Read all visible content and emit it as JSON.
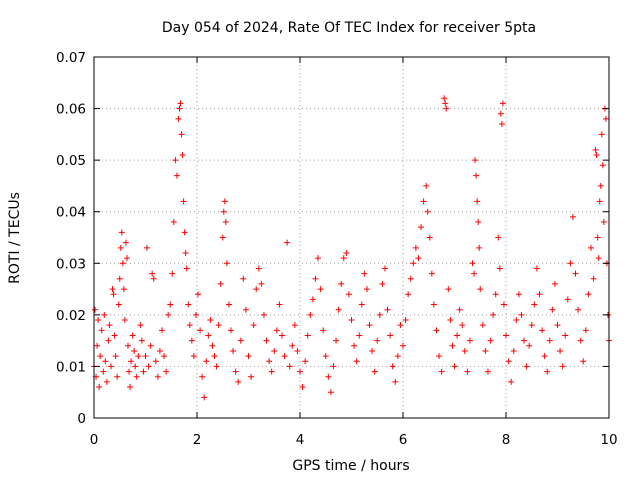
{
  "chart_data": {
    "type": "scatter",
    "title": "Day 054 of 2024, Rate Of TEC Index for receiver 5pta",
    "xlabel": "GPS time / hours",
    "ylabel": "ROTI / TECUs",
    "xlim": [
      0,
      10
    ],
    "ylim": [
      0,
      0.07
    ],
    "xticks": [
      0,
      2,
      4,
      6,
      8,
      10
    ],
    "yticks": [
      0,
      0.01,
      0.02,
      0.03,
      0.04,
      0.05,
      0.06,
      0.07
    ],
    "xtick_labels": [
      "0",
      "2",
      "4",
      "6",
      "8",
      "10"
    ],
    "ytick_labels": [
      "0",
      "0.01",
      "0.02",
      "0.03",
      "0.04",
      "0.05",
      "0.06",
      "0.07"
    ],
    "grid": true,
    "marker": "+",
    "series_color": "#ff0000",
    "series": [
      {
        "name": "ROTI",
        "points": [
          [
            0.0,
            0.01
          ],
          [
            0.02,
            0.021
          ],
          [
            0.04,
            0.008
          ],
          [
            0.06,
            0.014
          ],
          [
            0.08,
            0.019
          ],
          [
            0.1,
            0.006
          ],
          [
            0.12,
            0.012
          ],
          [
            0.15,
            0.017
          ],
          [
            0.18,
            0.009
          ],
          [
            0.2,
            0.02
          ],
          [
            0.22,
            0.011
          ],
          [
            0.25,
            0.007
          ],
          [
            0.28,
            0.015
          ],
          [
            0.3,
            0.018
          ],
          [
            0.33,
            0.01
          ],
          [
            0.36,
            0.025
          ],
          [
            0.38,
            0.024
          ],
          [
            0.4,
            0.016
          ],
          [
            0.42,
            0.012
          ],
          [
            0.45,
            0.008
          ],
          [
            0.48,
            0.022
          ],
          [
            0.5,
            0.027
          ],
          [
            0.52,
            0.033
          ],
          [
            0.54,
            0.036
          ],
          [
            0.56,
            0.03
          ],
          [
            0.58,
            0.025
          ],
          [
            0.6,
            0.019
          ],
          [
            0.62,
            0.034
          ],
          [
            0.64,
            0.031
          ],
          [
            0.66,
            0.014
          ],
          [
            0.68,
            0.009
          ],
          [
            0.7,
            0.006
          ],
          [
            0.72,
            0.011
          ],
          [
            0.75,
            0.016
          ],
          [
            0.78,
            0.013
          ],
          [
            0.8,
            0.01
          ],
          [
            0.83,
            0.008
          ],
          [
            0.86,
            0.012
          ],
          [
            0.9,
            0.018
          ],
          [
            0.93,
            0.015
          ],
          [
            0.96,
            0.009
          ],
          [
            1.0,
            0.012
          ],
          [
            1.03,
            0.033
          ],
          [
            1.06,
            0.01
          ],
          [
            1.1,
            0.014
          ],
          [
            1.13,
            0.028
          ],
          [
            1.16,
            0.027
          ],
          [
            1.2,
            0.011
          ],
          [
            1.24,
            0.008
          ],
          [
            1.28,
            0.013
          ],
          [
            1.32,
            0.017
          ],
          [
            1.36,
            0.012
          ],
          [
            1.4,
            0.009
          ],
          [
            1.44,
            0.02
          ],
          [
            1.48,
            0.022
          ],
          [
            1.52,
            0.028
          ],
          [
            1.55,
            0.038
          ],
          [
            1.58,
            0.05
          ],
          [
            1.61,
            0.047
          ],
          [
            1.64,
            0.058
          ],
          [
            1.66,
            0.06
          ],
          [
            1.68,
            0.061
          ],
          [
            1.7,
            0.055
          ],
          [
            1.72,
            0.051
          ],
          [
            1.74,
            0.042
          ],
          [
            1.76,
            0.036
          ],
          [
            1.78,
            0.032
          ],
          [
            1.8,
            0.029
          ],
          [
            1.83,
            0.022
          ],
          [
            1.86,
            0.018
          ],
          [
            1.9,
            0.015
          ],
          [
            1.94,
            0.012
          ],
          [
            1.98,
            0.02
          ],
          [
            2.02,
            0.024
          ],
          [
            2.06,
            0.017
          ],
          [
            2.1,
            0.008
          ],
          [
            2.14,
            0.004
          ],
          [
            2.18,
            0.011
          ],
          [
            2.22,
            0.016
          ],
          [
            2.26,
            0.019
          ],
          [
            2.3,
            0.014
          ],
          [
            2.34,
            0.012
          ],
          [
            2.38,
            0.01
          ],
          [
            2.42,
            0.018
          ],
          [
            2.46,
            0.026
          ],
          [
            2.5,
            0.035
          ],
          [
            2.52,
            0.04
          ],
          [
            2.54,
            0.042
          ],
          [
            2.56,
            0.038
          ],
          [
            2.58,
            0.03
          ],
          [
            2.62,
            0.022
          ],
          [
            2.66,
            0.017
          ],
          [
            2.7,
            0.013
          ],
          [
            2.75,
            0.009
          ],
          [
            2.8,
            0.007
          ],
          [
            2.85,
            0.015
          ],
          [
            2.9,
            0.027
          ],
          [
            2.95,
            0.021
          ],
          [
            3.0,
            0.012
          ],
          [
            3.05,
            0.008
          ],
          [
            3.1,
            0.018
          ],
          [
            3.15,
            0.025
          ],
          [
            3.2,
            0.029
          ],
          [
            3.25,
            0.026
          ],
          [
            3.3,
            0.02
          ],
          [
            3.35,
            0.015
          ],
          [
            3.4,
            0.011
          ],
          [
            3.45,
            0.009
          ],
          [
            3.5,
            0.013
          ],
          [
            3.55,
            0.017
          ],
          [
            3.6,
            0.022
          ],
          [
            3.65,
            0.016
          ],
          [
            3.7,
            0.012
          ],
          [
            3.75,
            0.034
          ],
          [
            3.8,
            0.01
          ],
          [
            3.85,
            0.014
          ],
          [
            3.9,
            0.018
          ],
          [
            3.95,
            0.013
          ],
          [
            4.0,
            0.009
          ],
          [
            4.05,
            0.006
          ],
          [
            4.1,
            0.011
          ],
          [
            4.15,
            0.016
          ],
          [
            4.2,
            0.02
          ],
          [
            4.25,
            0.023
          ],
          [
            4.3,
            0.027
          ],
          [
            4.35,
            0.031
          ],
          [
            4.4,
            0.025
          ],
          [
            4.45,
            0.017
          ],
          [
            4.5,
            0.012
          ],
          [
            4.55,
            0.008
          ],
          [
            4.6,
            0.005
          ],
          [
            4.65,
            0.01
          ],
          [
            4.7,
            0.015
          ],
          [
            4.75,
            0.021
          ],
          [
            4.8,
            0.026
          ],
          [
            4.85,
            0.031
          ],
          [
            4.9,
            0.032
          ],
          [
            4.95,
            0.024
          ],
          [
            5.0,
            0.019
          ],
          [
            5.05,
            0.014
          ],
          [
            5.1,
            0.011
          ],
          [
            5.15,
            0.016
          ],
          [
            5.2,
            0.022
          ],
          [
            5.25,
            0.028
          ],
          [
            5.3,
            0.025
          ],
          [
            5.35,
            0.018
          ],
          [
            5.4,
            0.013
          ],
          [
            5.45,
            0.009
          ],
          [
            5.5,
            0.015
          ],
          [
            5.55,
            0.02
          ],
          [
            5.6,
            0.026
          ],
          [
            5.65,
            0.029
          ],
          [
            5.7,
            0.021
          ],
          [
            5.75,
            0.016
          ],
          [
            5.8,
            0.01
          ],
          [
            5.85,
            0.007
          ],
          [
            5.9,
            0.012
          ],
          [
            5.95,
            0.018
          ],
          [
            6.0,
            0.014
          ],
          [
            6.05,
            0.019
          ],
          [
            6.1,
            0.024
          ],
          [
            6.15,
            0.027
          ],
          [
            6.2,
            0.03
          ],
          [
            6.25,
            0.033
          ],
          [
            6.3,
            0.031
          ],
          [
            6.35,
            0.037
          ],
          [
            6.4,
            0.042
          ],
          [
            6.45,
            0.045
          ],
          [
            6.48,
            0.04
          ],
          [
            6.52,
            0.035
          ],
          [
            6.56,
            0.028
          ],
          [
            6.6,
            0.022
          ],
          [
            6.65,
            0.017
          ],
          [
            6.7,
            0.012
          ],
          [
            6.75,
            0.009
          ],
          [
            6.8,
            0.062
          ],
          [
            6.82,
            0.061
          ],
          [
            6.84,
            0.06
          ],
          [
            6.88,
            0.025
          ],
          [
            6.92,
            0.019
          ],
          [
            6.96,
            0.014
          ],
          [
            7.0,
            0.01
          ],
          [
            7.05,
            0.016
          ],
          [
            7.1,
            0.021
          ],
          [
            7.15,
            0.018
          ],
          [
            7.2,
            0.013
          ],
          [
            7.25,
            0.009
          ],
          [
            7.3,
            0.015
          ],
          [
            7.35,
            0.03
          ],
          [
            7.38,
            0.028
          ],
          [
            7.4,
            0.05
          ],
          [
            7.42,
            0.047
          ],
          [
            7.44,
            0.042
          ],
          [
            7.46,
            0.038
          ],
          [
            7.48,
            0.033
          ],
          [
            7.5,
            0.025
          ],
          [
            7.55,
            0.018
          ],
          [
            7.6,
            0.013
          ],
          [
            7.65,
            0.009
          ],
          [
            7.7,
            0.015
          ],
          [
            7.75,
            0.02
          ],
          [
            7.8,
            0.024
          ],
          [
            7.85,
            0.035
          ],
          [
            7.88,
            0.029
          ],
          [
            7.9,
            0.059
          ],
          [
            7.92,
            0.057
          ],
          [
            7.94,
            0.061
          ],
          [
            7.96,
            0.022
          ],
          [
            8.0,
            0.016
          ],
          [
            8.05,
            0.011
          ],
          [
            8.1,
            0.007
          ],
          [
            8.15,
            0.013
          ],
          [
            8.2,
            0.019
          ],
          [
            8.25,
            0.024
          ],
          [
            8.3,
            0.02
          ],
          [
            8.35,
            0.015
          ],
          [
            8.4,
            0.01
          ],
          [
            8.45,
            0.014
          ],
          [
            8.5,
            0.018
          ],
          [
            8.55,
            0.022
          ],
          [
            8.6,
            0.029
          ],
          [
            8.65,
            0.024
          ],
          [
            8.7,
            0.017
          ],
          [
            8.75,
            0.012
          ],
          [
            8.8,
            0.009
          ],
          [
            8.85,
            0.015
          ],
          [
            8.9,
            0.021
          ],
          [
            8.95,
            0.026
          ],
          [
            9.0,
            0.018
          ],
          [
            9.05,
            0.013
          ],
          [
            9.1,
            0.01
          ],
          [
            9.15,
            0.016
          ],
          [
            9.2,
            0.023
          ],
          [
            9.25,
            0.03
          ],
          [
            9.3,
            0.039
          ],
          [
            9.35,
            0.028
          ],
          [
            9.4,
            0.021
          ],
          [
            9.45,
            0.015
          ],
          [
            9.5,
            0.011
          ],
          [
            9.55,
            0.017
          ],
          [
            9.6,
            0.024
          ],
          [
            9.65,
            0.033
          ],
          [
            9.7,
            0.027
          ],
          [
            9.74,
            0.052
          ],
          [
            9.76,
            0.051
          ],
          [
            9.78,
            0.035
          ],
          [
            9.8,
            0.031
          ],
          [
            9.82,
            0.042
          ],
          [
            9.84,
            0.045
          ],
          [
            9.86,
            0.055
          ],
          [
            9.88,
            0.049
          ],
          [
            9.9,
            0.038
          ],
          [
            9.92,
            0.06
          ],
          [
            9.94,
            0.058
          ],
          [
            9.96,
            0.03
          ],
          [
            9.98,
            0.02
          ],
          [
            10.0,
            0.015
          ]
        ]
      }
    ]
  }
}
